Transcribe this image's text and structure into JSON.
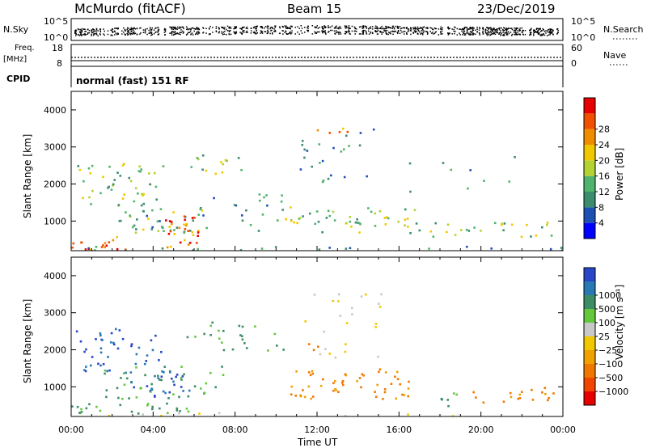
{
  "header": {
    "station": "McMurdo (fitACF)",
    "beam": "Beam 15",
    "date": "23/Dec/2019"
  },
  "top_panels": {
    "nsky": {
      "label": "N.Sky",
      "ticks": [
        "10^5",
        "10^0"
      ],
      "right_label": "N.Search",
      "right_ticks": [
        "10^5",
        "10^0"
      ]
    },
    "freq": {
      "label_line1": "Freq.",
      "label_line2": "[MHz]",
      "ticks": [
        "18",
        "8"
      ],
      "right_label": "Nave",
      "right_ticks": [
        "60",
        "0"
      ]
    },
    "cpid": {
      "label": "CPID",
      "text": "normal (fast) 151 RF"
    }
  },
  "chart_data": [
    {
      "type": "heatmap",
      "name": "power",
      "ylabel": "Slant Range [km]",
      "yticks": [
        "1000",
        "2000",
        "3000",
        "4000"
      ],
      "xticks": [
        "00:00",
        "04:00",
        "08:00",
        "12:00",
        "16:00",
        "20:00",
        "00:00"
      ],
      "ylim": [
        200,
        4500
      ],
      "colorbar": {
        "label": "Power [dB]",
        "ticks": [
          "4",
          "8",
          "12",
          "16",
          "20",
          "24",
          "28"
        ],
        "colors": [
          "#0000ff",
          "#1e50b4",
          "#3c8c6e",
          "#50b46e",
          "#b4d232",
          "#f0c800",
          "#f08c00",
          "#f05000",
          "#e60000"
        ]
      }
    },
    {
      "type": "heatmap",
      "name": "velocity",
      "ylabel": "Slant Range [km]",
      "yticks": [
        "1000",
        "2000",
        "3000",
        "4000"
      ],
      "xticks": [
        "00:00",
        "04:00",
        "08:00",
        "12:00",
        "16:00",
        "20:00",
        "00:00"
      ],
      "xlabel": "Time UT",
      "ylim": [
        200,
        4500
      ],
      "colorbar": {
        "label": "Velocity [m s⁻¹]",
        "ticks": [
          "1000",
          "500",
          "100",
          "25",
          "−25",
          "−100",
          "−500",
          "−1000"
        ],
        "colors": [
          "#2846c8",
          "#2878b4",
          "#3c8c64",
          "#64c83c",
          "#c8c8c8",
          "#f0c800",
          "#f0a000",
          "#f07800",
          "#f04600",
          "#e60000"
        ]
      }
    }
  ]
}
